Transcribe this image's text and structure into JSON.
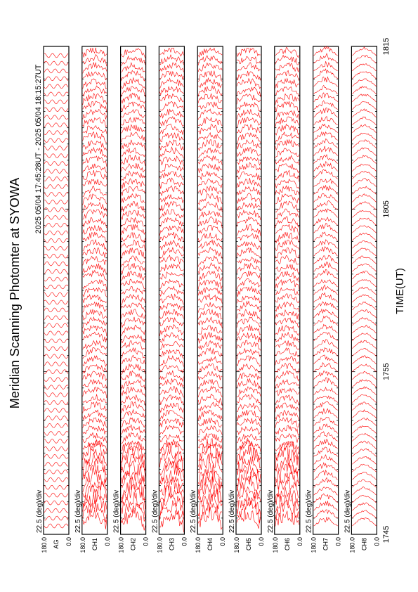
{
  "chart_data": {
    "type": "line",
    "title": "Meridian Scanning Photomter at SYOWA",
    "subtitle": "2025 05/04 17:45:28UT - 2025 05/04 18:15:27UT",
    "xlabel": "TIME(UT)",
    "x_ticks": [
      "1745",
      "1755",
      "1805",
      "1815"
    ],
    "xlim": [
      "1745",
      "1815"
    ],
    "scale_label": "22.5 (deg)/div",
    "y_tick_top": "180.0",
    "y_tick_bottom": "0.0",
    "ylim": [
      0,
      180
    ],
    "orientation": "rotated-90-ccw",
    "line_color": "#ff0000",
    "grid": false,
    "panels": [
      {
        "channel": "AG",
        "style": "reference"
      },
      {
        "channel": "CH1",
        "style": "scan"
      },
      {
        "channel": "CH2",
        "style": "scan"
      },
      {
        "channel": "CH3",
        "style": "scan"
      },
      {
        "channel": "CH4",
        "style": "scan"
      },
      {
        "channel": "CH5",
        "style": "scan"
      },
      {
        "channel": "CH6",
        "style": "scan"
      },
      {
        "channel": "CH7",
        "style": "saturated"
      },
      {
        "channel": "CH8",
        "style": "smooth"
      }
    ]
  }
}
